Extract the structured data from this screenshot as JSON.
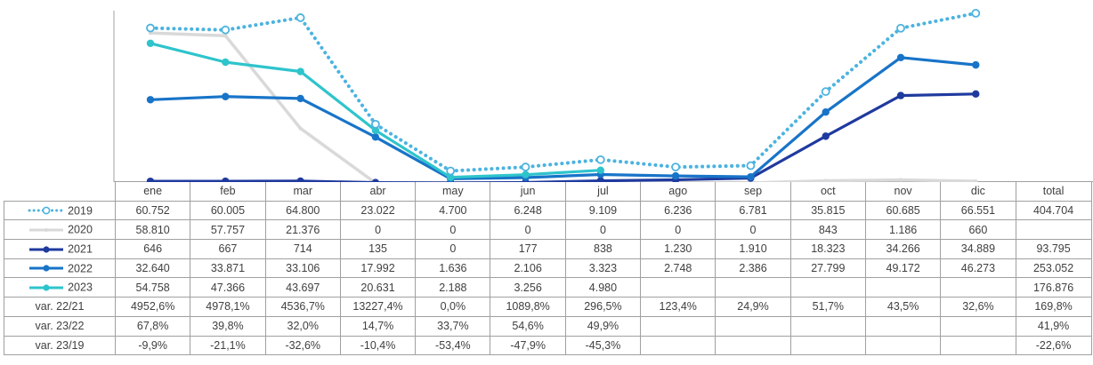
{
  "chart_data": {
    "type": "line",
    "categories": [
      "ene",
      "feb",
      "mar",
      "abr",
      "may",
      "jun",
      "jul",
      "ago",
      "sep",
      "oct",
      "nov",
      "dic"
    ],
    "total_label": "total",
    "ylim": [
      0,
      70000
    ],
    "grid": false,
    "series": [
      {
        "name": "2019",
        "color": "#4BB3E0",
        "style": "dotted",
        "marker": "open-circle",
        "values": [
          60752,
          60005,
          64800,
          23022,
          4700,
          6248,
          9109,
          6236,
          6781,
          35815,
          60685,
          66551
        ],
        "display": [
          "60.752",
          "60.005",
          "64.800",
          "23.022",
          "4.700",
          "6.248",
          "9.109",
          "6.236",
          "6.781",
          "35.815",
          "60.685",
          "66.551"
        ],
        "total": "404.704"
      },
      {
        "name": "2020",
        "color": "#D9D9D9",
        "style": "solid",
        "marker": "small-dot",
        "values": [
          58810,
          57757,
          21376,
          0,
          0,
          0,
          0,
          0,
          0,
          843,
          1186,
          660
        ],
        "display": [
          "58.810",
          "57.757",
          "21.376",
          "0",
          "0",
          "0",
          "0",
          "0",
          "0",
          "843",
          "1.186",
          "660"
        ],
        "total": ""
      },
      {
        "name": "2021",
        "color": "#1F3A9E",
        "style": "solid",
        "marker": "filled-circle",
        "values": [
          646,
          667,
          714,
          135,
          0,
          177,
          838,
          1230,
          1910,
          18323,
          34266,
          34889
        ],
        "display": [
          "646",
          "667",
          "714",
          "135",
          "0",
          "177",
          "838",
          "1.230",
          "1.910",
          "18.323",
          "34.266",
          "34.889"
        ],
        "total": "93.795"
      },
      {
        "name": "2022",
        "color": "#1874C8",
        "style": "solid",
        "marker": "filled-circle",
        "values": [
          32640,
          33871,
          33106,
          17992,
          1636,
          2106,
          3323,
          2748,
          2386,
          27799,
          49172,
          46273
        ],
        "display": [
          "32.640",
          "33.871",
          "33.106",
          "17.992",
          "1.636",
          "2.106",
          "3.323",
          "2.748",
          "2.386",
          "27.799",
          "49.172",
          "46.273"
        ],
        "total": "253.052"
      },
      {
        "name": "2023",
        "color": "#2EC4CC",
        "style": "solid",
        "marker": "filled-circle",
        "values": [
          54758,
          47366,
          43697,
          20631,
          2188,
          3256,
          4980,
          null,
          null,
          null,
          null,
          null
        ],
        "display": [
          "54.758",
          "47.366",
          "43.697",
          "20.631",
          "2.188",
          "3.256",
          "4.980",
          "",
          "",
          "",
          "",
          ""
        ],
        "total": "176.876"
      }
    ],
    "variation_rows": [
      {
        "label": "var. 22/21",
        "values": [
          "4952,6%",
          "4978,1%",
          "4536,7%",
          "13227,4%",
          "0,0%",
          "1089,8%",
          "296,5%",
          "123,4%",
          "24,9%",
          "51,7%",
          "43,5%",
          "32,6%"
        ],
        "total": "169,8%"
      },
      {
        "label": "var. 23/22",
        "values": [
          "67,8%",
          "39,8%",
          "32,0%",
          "14,7%",
          "33,7%",
          "54,6%",
          "49,9%",
          "",
          "",
          "",
          "",
          ""
        ],
        "total": "41,9%"
      },
      {
        "label": "var. 23/19",
        "values": [
          "-9,9%",
          "-21,1%",
          "-32,6%",
          "-10,4%",
          "-53,4%",
          "-47,9%",
          "-45,3%",
          "",
          "",
          "",
          "",
          ""
        ],
        "total": "-22,6%"
      }
    ]
  }
}
